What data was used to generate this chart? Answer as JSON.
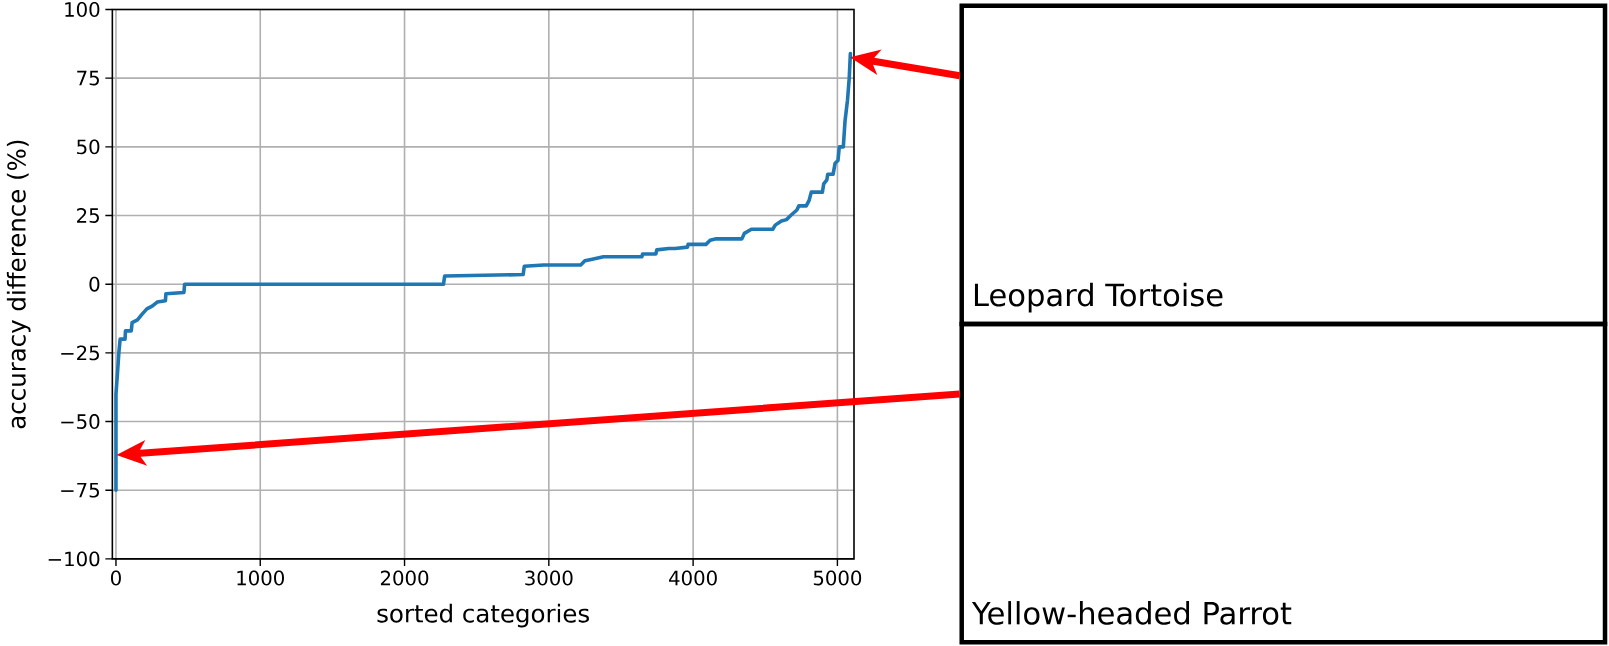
{
  "chart_data": {
    "type": "line",
    "xlabel": "sorted categories",
    "ylabel": "accuracy difference (%)",
    "x": [
      0,
      0,
      11,
      20,
      29,
      63,
      66,
      106,
      112,
      149,
      180,
      214,
      251,
      286,
      343,
      346,
      471,
      476,
      2270,
      2278,
      2822,
      2830,
      2964,
      3221,
      3250,
      3293,
      3379,
      3450,
      3645,
      3650,
      3742,
      3748,
      3832,
      3875,
      3961,
      3965,
      4089,
      4118,
      4160,
      4338,
      4355,
      4404,
      4552,
      4569,
      4612,
      4647,
      4676,
      4719,
      4733,
      4784,
      4804,
      4819,
      4896,
      4905,
      4927,
      4933,
      4970,
      4984,
      5004,
      5013,
      5041,
      5053,
      5070,
      5082,
      5090
    ],
    "values": [
      -75,
      -40,
      -32,
      -25,
      -20,
      -20,
      -17,
      -17,
      -14,
      -13,
      -11,
      -9,
      -8,
      -6.5,
      -6,
      -3.5,
      -3,
      0,
      0,
      3,
      3.5,
      6.5,
      7,
      7,
      8.5,
      9,
      10,
      10,
      10,
      11,
      11,
      12.5,
      13,
      13,
      13.5,
      14.5,
      14.5,
      16,
      16.5,
      16.5,
      18.5,
      20,
      20,
      21.5,
      23,
      23.5,
      25,
      27,
      28.5,
      28.5,
      30.5,
      33.5,
      33.5,
      36.5,
      38,
      40,
      40,
      44,
      45,
      50,
      50,
      59.5,
      67,
      75,
      84
    ],
    "color": "#1f77b4",
    "xlim": [
      -25,
      5115
    ],
    "ylim": [
      -100,
      100
    ],
    "xticks": [
      0,
      1000,
      2000,
      3000,
      4000,
      5000
    ],
    "yticks": [
      {
        "value": -100,
        "label": "−100"
      },
      {
        "value": -75,
        "label": "−75"
      },
      {
        "value": -50,
        "label": "−50"
      },
      {
        "value": -25,
        "label": "−25"
      },
      0,
      25,
      50,
      75,
      100
    ],
    "grid": true,
    "annotations": [
      "Leopard Tortoise",
      "Yellow-headed Parrot"
    ]
  }
}
